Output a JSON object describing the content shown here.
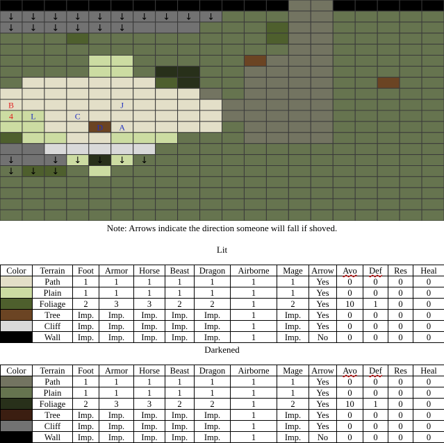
{
  "map": {
    "colors": {
      "path": "#e3dfc8",
      "plain": "#ccdca2",
      "foliage": "#4e5f2d",
      "tree": "#6b4423",
      "cliff": "#d9d9d9",
      "wall": "#000000",
      "dark_path": "#737461",
      "dark_plain": "#66744f",
      "dark_foliage": "#28301a",
      "dark_tree": "#3b1e11",
      "dark_cliff": "#727272",
      "grid": "#3a3a3a"
    },
    "rows": [
      "WWWWWWWWWWWWWPPWWWWW",
      "ccccccccccqqqPPqqqqq",
      "cccccccccqqqfPPqqqqq",
      "qqqfqqqqqqqqfPPqqqqq",
      "qqqqqqqqqqqqqPPqqqqq",
      "qqqqLLqqqqqtpPPqqqqq",
      "qqqqLLqFFqqpPPPqqqqq",
      "qOOOOOOfFqqpPPPqqtqq",
      "OOOOOOOOOpqpPPPqqqqq",
      "OOOOOOOOOOPpPPPqqqqq",
      "ooOOOOOOOOPpPPPqqqqq",
      "ooOOtOOOOOqpPPPqqqqq",
      "fooOOoooqqqpPPPqqqqq",
      "ccCCCCCqqqqqqqqqqqqq",
      "cccoFoqqqqqqqqqqqqqq",
      "qffqoqqqqqqqqqqqqqqq",
      "qqqqqqqqqqqqqqqqqqqq",
      "qqqqqqqqqqqqqqqqqqqq",
      "qqqqqqqqqqqqqqqqqqqq",
      "qqqqqqqqqqqqqqqqqqqq"
    ],
    "arrow_cells": [
      [
        0,
        0
      ],
      [
        1,
        0
      ],
      [
        2,
        0
      ],
      [
        3,
        0
      ],
      [
        4,
        0
      ],
      [
        5,
        0
      ],
      [
        6,
        0
      ],
      [
        7,
        0
      ],
      [
        8,
        0
      ],
      [
        10,
        0
      ],
      [
        17,
        0
      ],
      [
        18,
        0
      ],
      [
        0,
        1
      ],
      [
        1,
        1
      ],
      [
        2,
        1
      ],
      [
        3,
        1
      ],
      [
        4,
        1
      ],
      [
        5,
        1
      ],
      [
        6,
        1
      ],
      [
        7,
        1
      ],
      [
        8,
        1
      ],
      [
        9,
        1
      ],
      [
        0,
        2
      ],
      [
        1,
        2
      ],
      [
        2,
        2
      ],
      [
        3,
        2
      ],
      [
        4,
        2
      ],
      [
        5,
        2
      ],
      [
        0,
        14
      ],
      [
        2,
        14
      ],
      [
        3,
        14
      ],
      [
        4,
        14
      ],
      [
        5,
        14
      ],
      [
        6,
        14
      ],
      [
        0,
        15
      ],
      [
        1,
        15
      ],
      [
        2,
        15
      ]
    ],
    "arrow_glyph": "↓",
    "labels": [
      {
        "text": "B",
        "col": 0,
        "row": 9,
        "color": "#e02020"
      },
      {
        "text": "4",
        "col": 0,
        "row": 10,
        "color": "#e02020"
      },
      {
        "text": "L",
        "col": 1,
        "row": 10,
        "color": "#2030c0"
      },
      {
        "text": "C",
        "col": 3,
        "row": 10,
        "color": "#2030c0"
      },
      {
        "text": "J",
        "col": 5,
        "row": 9,
        "color": "#2030c0"
      },
      {
        "text": "D",
        "col": 4,
        "row": 11,
        "color": "#2030c0"
      },
      {
        "text": "A",
        "col": 5,
        "row": 11,
        "color": "#2030c0"
      }
    ]
  },
  "note": "Note: Arrows indicate the direction someone will fall if shoved.",
  "lit": {
    "title": "Lit",
    "headers": [
      "Color",
      "Terrain",
      "Foot",
      "Armor",
      "Horse",
      "Beast",
      "Dragon",
      "Airborne",
      "Mage",
      "Arrow",
      "Avo",
      "Def",
      "Res",
      "Heal"
    ],
    "rows": [
      {
        "color": "#e3dfc8",
        "cells": [
          "Path",
          "1",
          "1",
          "1",
          "1",
          "1",
          "1",
          "1",
          "Yes",
          "0",
          "0",
          "0",
          "0"
        ]
      },
      {
        "color": "#ccdca2",
        "cells": [
          "Plain",
          "1",
          "1",
          "1",
          "1",
          "1",
          "1",
          "1",
          "Yes",
          "0",
          "0",
          "0",
          "0"
        ]
      },
      {
        "color": "#4e5f2d",
        "cells": [
          "Foliage",
          "2",
          "3",
          "3",
          "2",
          "2",
          "1",
          "2",
          "Yes",
          "10",
          "1",
          "0",
          "0"
        ]
      },
      {
        "color": "#6b4423",
        "cells": [
          "Tree",
          "Imp.",
          "Imp.",
          "Imp.",
          "Imp.",
          "Imp.",
          "1",
          "Imp.",
          "Yes",
          "0",
          "0",
          "0",
          "0"
        ]
      },
      {
        "color": "#d9d9d9",
        "cells": [
          "Cliff",
          "Imp.",
          "Imp.",
          "Imp.",
          "Imp.",
          "Imp.",
          "1",
          "Imp.",
          "Yes",
          "0",
          "0",
          "0",
          "0"
        ]
      },
      {
        "color": "#000000",
        "cells": [
          "Wall",
          "Imp.",
          "Imp.",
          "Imp.",
          "Imp.",
          "Imp.",
          "1",
          "Imp.",
          "No",
          "0",
          "0",
          "0",
          "0"
        ]
      }
    ]
  },
  "dark": {
    "title": "Darkened",
    "headers": [
      "Color",
      "Terrain",
      "Foot",
      "Armor",
      "Horse",
      "Beast",
      "Dragon",
      "Airborne",
      "Mage",
      "Arrow",
      "Avo",
      "Def",
      "Res",
      "Heal"
    ],
    "rows": [
      {
        "color": "#737461",
        "cells": [
          "Path",
          "1",
          "1",
          "1",
          "1",
          "1",
          "1",
          "1",
          "Yes",
          "0",
          "0",
          "0",
          "0"
        ]
      },
      {
        "color": "#66744f",
        "cells": [
          "Plain",
          "1",
          "1",
          "1",
          "1",
          "1",
          "1",
          "1",
          "Yes",
          "0",
          "0",
          "0",
          "0"
        ]
      },
      {
        "color": "#28301a",
        "cells": [
          "Foliage",
          "2",
          "3",
          "3",
          "2",
          "2",
          "1",
          "2",
          "Yes",
          "10",
          "1",
          "0",
          "0"
        ]
      },
      {
        "color": "#3b1e11",
        "cells": [
          "Tree",
          "Imp.",
          "Imp.",
          "Imp.",
          "Imp.",
          "Imp.",
          "1",
          "Imp.",
          "Yes",
          "0",
          "0",
          "0",
          "0"
        ]
      },
      {
        "color": "#727272",
        "cells": [
          "Cliff",
          "Imp.",
          "Imp.",
          "Imp.",
          "Imp.",
          "Imp.",
          "1",
          "Imp.",
          "Yes",
          "0",
          "0",
          "0",
          "0"
        ]
      },
      {
        "color": "#000000",
        "cells": [
          "Wall",
          "Imp.",
          "Imp.",
          "Imp.",
          "Imp.",
          "Imp.",
          "1",
          "Imp.",
          "No",
          "0",
          "0",
          "0",
          "0"
        ]
      }
    ]
  }
}
